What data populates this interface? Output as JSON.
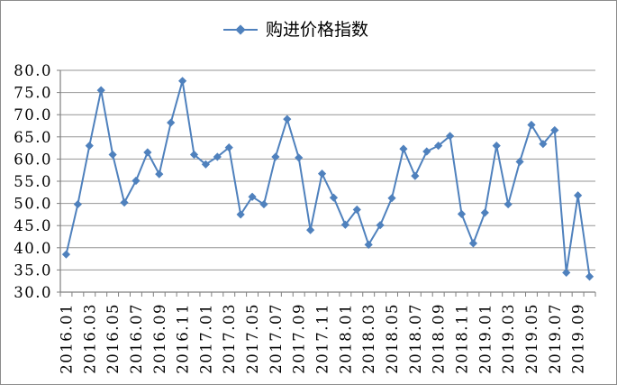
{
  "legend": {
    "label": "购进价格指数"
  },
  "colors": {
    "series": "#4F81BD",
    "gridline": "#969696",
    "axis": "#7f7f7f",
    "text": "#000000",
    "background": "#FFFFFF",
    "border": "#8c8c8c"
  },
  "chart_data": {
    "type": "line",
    "title": "",
    "xlabel": "",
    "ylabel": "",
    "ylim": [
      30,
      80
    ],
    "y_tick_step": 5,
    "y_tick_labels": [
      "80.0",
      "75.0",
      "70.0",
      "65.0",
      "60.0",
      "55.0",
      "50.0",
      "45.0",
      "40.0",
      "35.0",
      "30.0"
    ],
    "grid": "horizontal-only",
    "legend_position": "top-center",
    "x_tick_label_every": 2,
    "x_tick_labels_visible": [
      "2016.01",
      "2016.03",
      "2016.05",
      "2016.07",
      "2016.09",
      "2016.11",
      "2017.01",
      "2017.03",
      "2017.05",
      "2017.07",
      "2017.09",
      "2017.11",
      "2018.01",
      "2018.03",
      "2018.05",
      "2018.07",
      "2018.09",
      "2018.11",
      "2019.01",
      "2019.03",
      "2019.05",
      "2019.07",
      "2019.09"
    ],
    "x": [
      "2016.01",
      "2016.02",
      "2016.03",
      "2016.04",
      "2016.05",
      "2016.06",
      "2016.07",
      "2016.08",
      "2016.09",
      "2016.10",
      "2016.11",
      "2016.12",
      "2017.01",
      "2017.02",
      "2017.03",
      "2017.04",
      "2017.05",
      "2017.06",
      "2017.07",
      "2017.08",
      "2017.09",
      "2017.10",
      "2017.11",
      "2017.12",
      "2018.01",
      "2018.02",
      "2018.03",
      "2018.04",
      "2018.05",
      "2018.06",
      "2018.07",
      "2018.08",
      "2018.09",
      "2018.10",
      "2018.11",
      "2018.12",
      "2019.01",
      "2019.02",
      "2019.03",
      "2019.04",
      "2019.05",
      "2019.06",
      "2019.07",
      "2019.08",
      "2019.09",
      "2019.10"
    ],
    "series": [
      {
        "name": "购进价格指数",
        "color": "#4F81BD",
        "marker": "diamond",
        "values": [
          38.5,
          49.8,
          63.0,
          75.5,
          61.0,
          50.2,
          55.1,
          61.5,
          56.6,
          68.2,
          77.6,
          61.0,
          58.8,
          60.5,
          62.6,
          47.5,
          51.5,
          49.8,
          60.5,
          69.0,
          60.3,
          44.0,
          56.7,
          51.3,
          45.2,
          48.6,
          40.7,
          45.1,
          51.2,
          62.3,
          56.2,
          61.7,
          63.0,
          65.2,
          47.6,
          41.0,
          47.9,
          63.0,
          49.8,
          59.4,
          67.7,
          63.4,
          66.5,
          34.4,
          51.8,
          33.5
        ]
      }
    ]
  }
}
